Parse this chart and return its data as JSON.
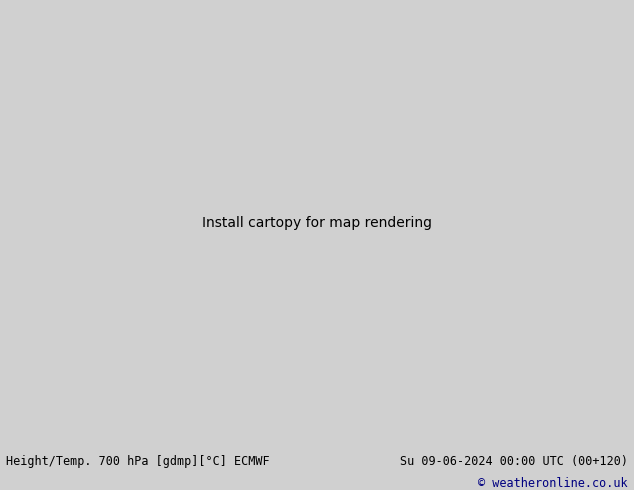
{
  "title_left": "Height/Temp. 700 hPa [gdmp][°C] ECMWF",
  "title_right": "Su 09-06-2024 00:00 UTC (00+120)",
  "copyright": "© weatheronline.co.uk",
  "bg_color": "#d0d0d0",
  "land_color": "#c8e6b8",
  "border_color": "#999999",
  "figsize": [
    6.34,
    4.9
  ],
  "dpi": 100,
  "black": "#000000",
  "red": "#cc0000",
  "magenta": "#cc00cc",
  "orange": "#cc6600"
}
